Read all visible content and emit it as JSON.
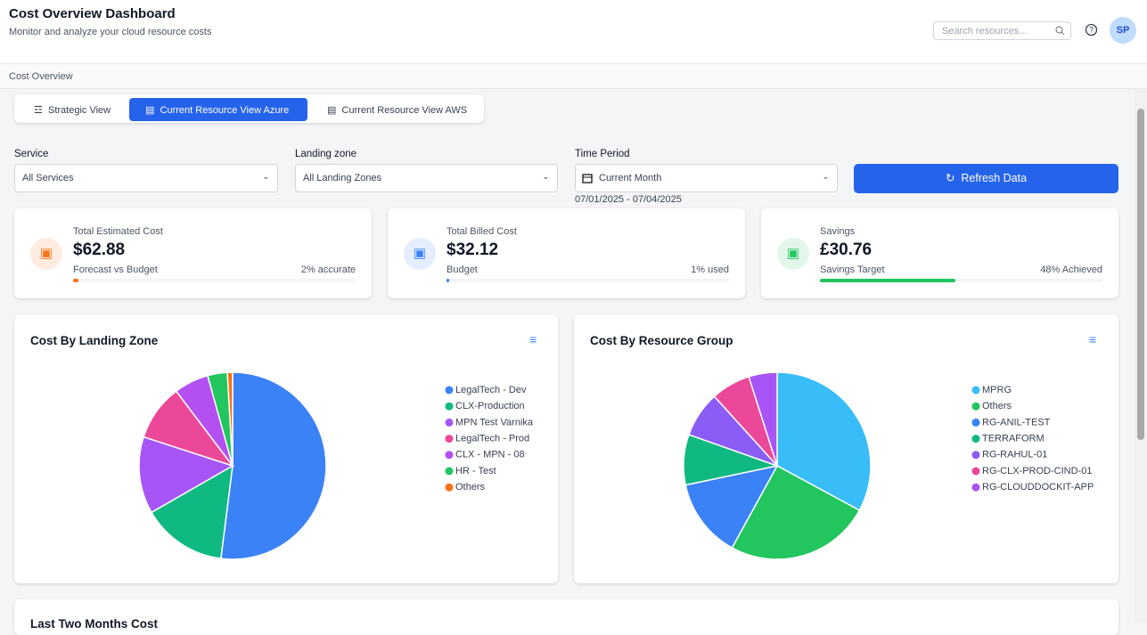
{
  "header": {
    "title": "Cost Overview Dashboard",
    "subtitle": "Monitor and analyze your cloud resource costs",
    "search_placeholder": "Search resources...",
    "avatar": "SP"
  },
  "breadcrumb": "Cost Overview",
  "tabs": [
    "Strategic View",
    "Current Resource View Azure",
    "Current Resource View AWS"
  ],
  "filters": [
    {
      "label": "Service",
      "value": "All Services"
    },
    {
      "label": "Landing zone",
      "value": "All Landing Zones"
    },
    {
      "label": "Time Period",
      "value": "Current Month"
    }
  ],
  "date_range": "07/01/2025 - 07/04/2025",
  "refresh_button": "Refresh Data",
  "cards": [
    {
      "title": "Total Estimated Cost",
      "value": "$62.88",
      "sublabel": "Forecast vs Budget",
      "progress": {
        "value": 2,
        "label": "2% accurate"
      },
      "color": "#f97316"
    },
    {
      "title": "Total Billed Cost",
      "value": "$32.12",
      "sublabel": "Budget",
      "progress": {
        "value": 1,
        "label": "1% used"
      },
      "color": "#3b82f6"
    },
    {
      "title": "Savings",
      "value": "£30.76",
      "sublabel": "Savings Target",
      "progress": {
        "value": 48,
        "label": "48% Achieved"
      },
      "color": "#22c55e"
    }
  ],
  "chart_data": [
    {
      "type": "pie",
      "title": "Cost By Landing Zone",
      "categories": [
        "LegalTech - Dev",
        "CLX-Production",
        "MPN Test Varnika",
        "LegalTech - Prod",
        "CLX - MPN - 08",
        "HR - Test",
        "Others"
      ],
      "values": [
        52,
        14.7,
        13.3,
        9.7,
        6,
        3.4,
        0.9
      ],
      "colors": [
        "#3b82f6",
        "#10b981",
        "#a855f7",
        "#ec4899",
        "#b44ff2",
        "#22c55e",
        "#f97316"
      ]
    },
    {
      "type": "pie",
      "title": "Cost By Resource Group",
      "categories": [
        "MPRG",
        "Others",
        "RG-ANIL-TEST",
        "TERRAFORM",
        "RG-RAHUL-01",
        "RG-CLX-PROD-CIND-01",
        "RG-CLOUDDOCKIT-APP"
      ],
      "values": [
        32.9,
        25.1,
        13.7,
        8.7,
        7.9,
        6.8,
        4.9
      ],
      "colors": [
        "#38bdf8",
        "#22c55e",
        "#3b82f6",
        "#10b981",
        "#8b5cf6",
        "#ec4899",
        "#a855f7"
      ]
    }
  ],
  "bottom_card": {
    "title": "Last Two Months Cost"
  }
}
